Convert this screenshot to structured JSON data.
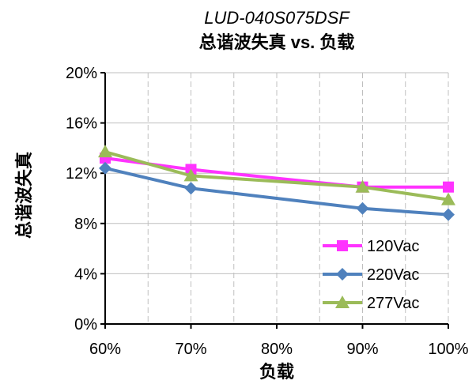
{
  "chart_data": {
    "type": "line",
    "title": "LUD-040S075DSF",
    "subtitle": "总谐波失真 vs. 负载",
    "xlabel": "负载",
    "ylabel": "总谐波失真",
    "x": [
      60,
      70,
      90,
      100
    ],
    "x_tick_values": [
      60,
      70,
      80,
      90,
      100
    ],
    "x_tick_labels": [
      "60%",
      "70%",
      "80%",
      "90%",
      "100%"
    ],
    "y_tick_values": [
      0,
      4,
      8,
      12,
      16,
      20
    ],
    "y_tick_labels": [
      "0%",
      "4%",
      "8%",
      "12%",
      "16%",
      "20%"
    ],
    "xlim": [
      60,
      100
    ],
    "ylim": [
      0,
      20
    ],
    "grid": true,
    "legend_position": "bottom-right",
    "series": [
      {
        "name": "120Vac",
        "color": "#ff33ff",
        "marker": "square",
        "values": [
          13.2,
          12.3,
          10.9,
          10.9
        ]
      },
      {
        "name": "220Vac",
        "color": "#4f81bd",
        "marker": "diamond",
        "values": [
          12.4,
          10.8,
          9.2,
          8.7
        ]
      },
      {
        "name": "277Vac",
        "color": "#9bbb59",
        "marker": "triangle",
        "values": [
          13.7,
          11.8,
          10.9,
          9.9
        ]
      }
    ]
  }
}
